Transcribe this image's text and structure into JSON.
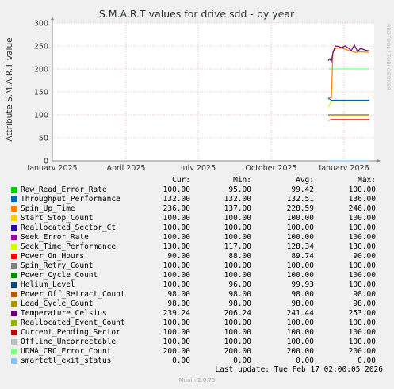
{
  "chart_data": {
    "type": "line",
    "title": "S.M.A.R.T values for drive sdd - by year",
    "ylabel": "Attribute S.M.A.R.T value",
    "ylim": [
      0,
      300
    ],
    "yticks": [
      0,
      50,
      100,
      150,
      200,
      250,
      300
    ],
    "xticks": [
      "January 2025",
      "April 2025",
      "July 2025",
      "October 2025",
      "January 2026"
    ],
    "side_label": "RRDTOOL / TOBI OETIKER",
    "grid": true,
    "series_note": "data present only from ~2025-12-20 to ~2026-02-17"
  },
  "legend": {
    "headers": [
      "Cur:",
      "Min:",
      "Avg:",
      "Max:"
    ],
    "items": [
      {
        "name": "Raw_Read_Error_Rate",
        "color": "#00cc00",
        "cur": "100.00",
        "min": "95.00",
        "avg": "99.42",
        "max": "100.00"
      },
      {
        "name": "Throughput_Performance",
        "color": "#0066b3",
        "cur": "132.00",
        "min": "132.00",
        "avg": "132.51",
        "max": "136.00"
      },
      {
        "name": "Spin_Up_Time",
        "color": "#ff8000",
        "cur": "236.00",
        "min": "137.00",
        "avg": "228.59",
        "max": "246.00"
      },
      {
        "name": "Start_Stop_Count",
        "color": "#ffcc00",
        "cur": "100.00",
        "min": "100.00",
        "avg": "100.00",
        "max": "100.00"
      },
      {
        "name": "Reallocated_Sector_Ct",
        "color": "#330099",
        "cur": "100.00",
        "min": "100.00",
        "avg": "100.00",
        "max": "100.00"
      },
      {
        "name": "Seek_Error_Rate",
        "color": "#990099",
        "cur": "100.00",
        "min": "100.00",
        "avg": "100.00",
        "max": "100.00"
      },
      {
        "name": "Seek_Time_Performance",
        "color": "#ccff00",
        "cur": "130.00",
        "min": "117.00",
        "avg": "128.34",
        "max": "130.00"
      },
      {
        "name": "Power_On_Hours",
        "color": "#ff0000",
        "cur": "90.00",
        "min": "88.00",
        "avg": "89.74",
        "max": "90.00"
      },
      {
        "name": "Spin_Retry_Count",
        "color": "#808080",
        "cur": "100.00",
        "min": "100.00",
        "avg": "100.00",
        "max": "100.00"
      },
      {
        "name": "Power_Cycle_Count",
        "color": "#008f00",
        "cur": "100.00",
        "min": "100.00",
        "avg": "100.00",
        "max": "100.00"
      },
      {
        "name": "Helium_Level",
        "color": "#00487d",
        "cur": "100.00",
        "min": "96.00",
        "avg": "99.93",
        "max": "100.00"
      },
      {
        "name": "Power_Off_Retract_Count",
        "color": "#b35a00",
        "cur": "98.00",
        "min": "98.00",
        "avg": "98.00",
        "max": "98.00"
      },
      {
        "name": "Load_Cycle_Count",
        "color": "#b38f00",
        "cur": "98.00",
        "min": "98.00",
        "avg": "98.00",
        "max": "98.00"
      },
      {
        "name": "Temperature_Celsius",
        "color": "#6b006b",
        "cur": "239.24",
        "min": "206.24",
        "avg": "241.44",
        "max": "253.00"
      },
      {
        "name": "Reallocated_Event_Count",
        "color": "#8fb300",
        "cur": "100.00",
        "min": "100.00",
        "avg": "100.00",
        "max": "100.00"
      },
      {
        "name": "Current_Pending_Sector",
        "color": "#b30000",
        "cur": "100.00",
        "min": "100.00",
        "avg": "100.00",
        "max": "100.00"
      },
      {
        "name": "Offline_Uncorrectable",
        "color": "#bebebe",
        "cur": "100.00",
        "min": "100.00",
        "avg": "100.00",
        "max": "100.00"
      },
      {
        "name": "UDMA_CRC_Error_Count",
        "color": "#80ff80",
        "cur": "200.00",
        "min": "200.00",
        "avg": "200.00",
        "max": "200.00"
      },
      {
        "name": "smartctl_exit_status",
        "color": "#80c9ff",
        "cur": "0.00",
        "min": "0.00",
        "avg": "0.00",
        "max": "0.00"
      }
    ]
  },
  "footer": {
    "last_update": "Last update: Tue Feb 17 02:00:05 2026",
    "version": "Munin 2.0.75"
  }
}
